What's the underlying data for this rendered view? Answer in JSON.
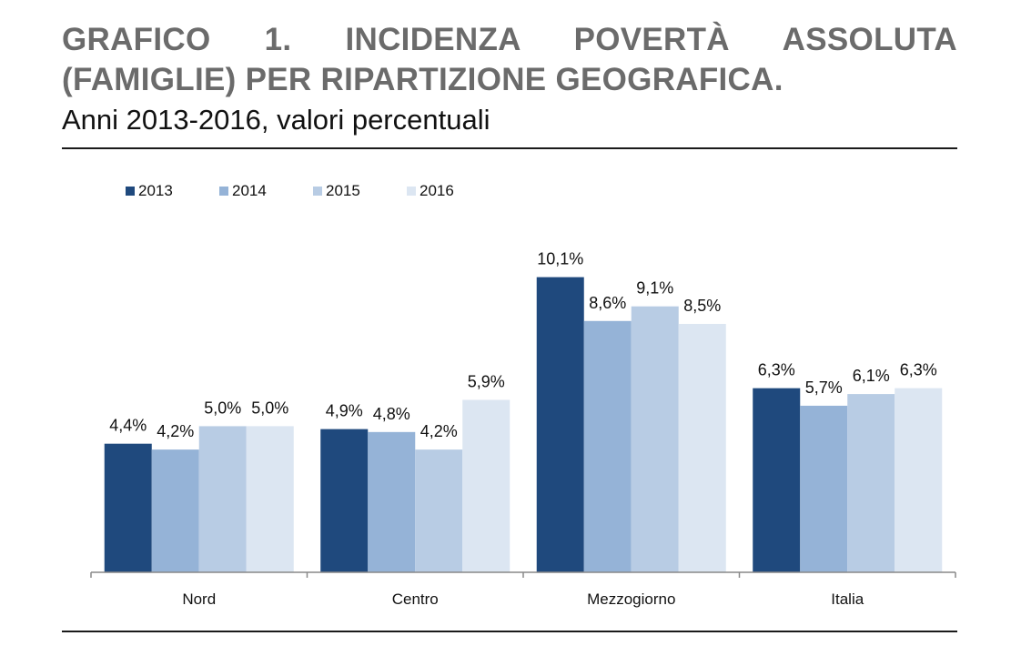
{
  "header": {
    "title": "GRAFICO 1. INCIDENZA POVERTÀ ASSOLUTA (FAMIGLIE) PER RIPARTIZIONE GEOGRAFICA.",
    "subtitle": "Anni 2013-2016, valori percentuali"
  },
  "colors": {
    "2013": "#1f497d",
    "2014": "#95b3d7",
    "2015": "#b8cce4",
    "2016": "#dce6f2"
  },
  "chart_data": {
    "type": "bar",
    "categories": [
      "Nord",
      "Centro",
      "Mezzogiorno",
      "Italia"
    ],
    "series": [
      {
        "name": "2013",
        "values": [
          4.4,
          4.9,
          10.1,
          6.3
        ],
        "labels": [
          "4,4%",
          "4,9%",
          "10,1%",
          "6,3%"
        ]
      },
      {
        "name": "2014",
        "values": [
          4.2,
          4.8,
          8.6,
          5.7
        ],
        "labels": [
          "4,2%",
          "4,8%",
          "8,6%",
          "5,7%"
        ]
      },
      {
        "name": "2015",
        "values": [
          5.0,
          4.2,
          9.1,
          6.1
        ],
        "labels": [
          "5,0%",
          "4,2%",
          "9,1%",
          "6,1%"
        ]
      },
      {
        "name": "2016",
        "values": [
          5.0,
          5.9,
          8.5,
          6.3
        ],
        "labels": [
          "5,0%",
          "5,9%",
          "8,5%",
          "6,3%"
        ]
      }
    ],
    "legend_position": "top-left",
    "grid": false,
    "ylim": [
      0,
      11.8
    ]
  }
}
